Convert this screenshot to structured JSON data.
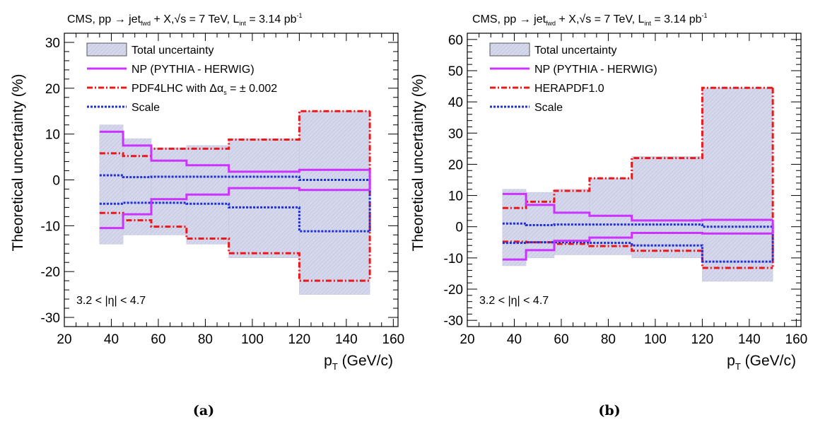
{
  "colors": {
    "total_fill": "#d5d7ec",
    "total_stroke": "#c6c8df",
    "np": "#cc33ff",
    "pdf": "#e8191b",
    "scale": "#1f2fd4"
  },
  "pt_bins": [
    35,
    45,
    57,
    72,
    90,
    120,
    150
  ],
  "chart_data": [
    {
      "type": "line",
      "panel_caption": "(a)",
      "title": {
        "cms": "CMS, pp → jet",
        "cms_sub": "fwd",
        "mid": " + X,",
        "sqrt": "√s",
        "energy": " = 7 TeV, L",
        "lumi_sub": "int",
        "lumi": " = 3.14 pb",
        "lumi_sup": "-1"
      },
      "xlabel": {
        "main": "p",
        "sub": "T",
        "unit": " (GeV/c)"
      },
      "ylabel": "Theoretical uncertainty (%)",
      "xlim": [
        20,
        162
      ],
      "ylim": [
        -32,
        32
      ],
      "xticks": [
        20,
        40,
        60,
        80,
        100,
        120,
        140,
        160
      ],
      "yticks": [
        -30,
        -20,
        -10,
        0,
        10,
        20,
        30
      ],
      "annotation": "3.2 < |η| < 4.7",
      "legend": {
        "total": "Total uncertainty",
        "np": "NP (PYTHIA - HERWIG)",
        "pdf_main": "PDF4LHC with Δα",
        "pdf_sub": "s",
        "pdf_rest": " = ± 0.002",
        "scale": "Scale"
      },
      "series": {
        "total_up": [
          12,
          9,
          7,
          7.5,
          9,
          15
        ],
        "total_down": [
          -14,
          -12,
          -12,
          -14,
          -17,
          -25
        ],
        "np_up": [
          10.5,
          7.5,
          4.2,
          3.2,
          1.8,
          2.2
        ],
        "np_down": [
          -10.5,
          -7.5,
          -4.2,
          -3.2,
          -1.8,
          -2.2
        ],
        "pdf_up": [
          5.8,
          5.2,
          6.8,
          6.8,
          8.8,
          15
        ],
        "pdf_down": [
          -7.2,
          -8.8,
          -10.2,
          -12.8,
          -16,
          -22
        ],
        "scale_up": [
          1,
          0.6,
          0.7,
          0.7,
          0.7,
          0
        ],
        "scale_down": [
          -5.2,
          -5,
          -5,
          -5.2,
          -6,
          -11.2
        ]
      }
    },
    {
      "type": "line",
      "panel_caption": "(b)",
      "title": {
        "cms": "CMS, pp → jet",
        "cms_sub": "fwd",
        "mid": " + X,",
        "sqrt": "√s",
        "energy": " = 7 TeV, L",
        "lumi_sub": "int",
        "lumi": " = 3.14 pb",
        "lumi_sup": "-1"
      },
      "xlabel": {
        "main": "p",
        "sub": "T",
        "unit": " (GeV/c)"
      },
      "ylabel": "Theoretical uncertainty (%)",
      "xlim": [
        20,
        162
      ],
      "ylim": [
        -32,
        62
      ],
      "xticks": [
        20,
        40,
        60,
        80,
        100,
        120,
        140,
        160
      ],
      "yticks": [
        -30,
        -20,
        -10,
        0,
        10,
        20,
        30,
        40,
        50,
        60
      ],
      "annotation": "3.2 < |η| < 4.7",
      "legend": {
        "total": "Total uncertainty",
        "np": "NP (PYTHIA - HERWIG)",
        "pdf_main": "HERAPDF1.0",
        "pdf_sub": "",
        "pdf_rest": "",
        "scale": "Scale"
      },
      "series": {
        "total_up": [
          12,
          11,
          12,
          15.5,
          22.5,
          44.5
        ],
        "total_down": [
          -12.5,
          -10,
          -9,
          -9,
          -10,
          -17.5
        ],
        "np_up": [
          10.5,
          7,
          4.5,
          3.5,
          2,
          2.2
        ],
        "np_down": [
          -10.5,
          -7.5,
          -4.5,
          -3.5,
          -2,
          -2.2
        ],
        "pdf_up": [
          6,
          8,
          11.5,
          15.5,
          22,
          44.5
        ],
        "pdf_down": [
          -4.8,
          -5,
          -5.5,
          -6.2,
          -7.7,
          -13.2
        ],
        "scale_up": [
          1,
          0.5,
          0.7,
          0.7,
          0.7,
          0
        ],
        "scale_down": [
          -5.2,
          -5,
          -5,
          -5.2,
          -6,
          -11.2
        ]
      }
    }
  ]
}
